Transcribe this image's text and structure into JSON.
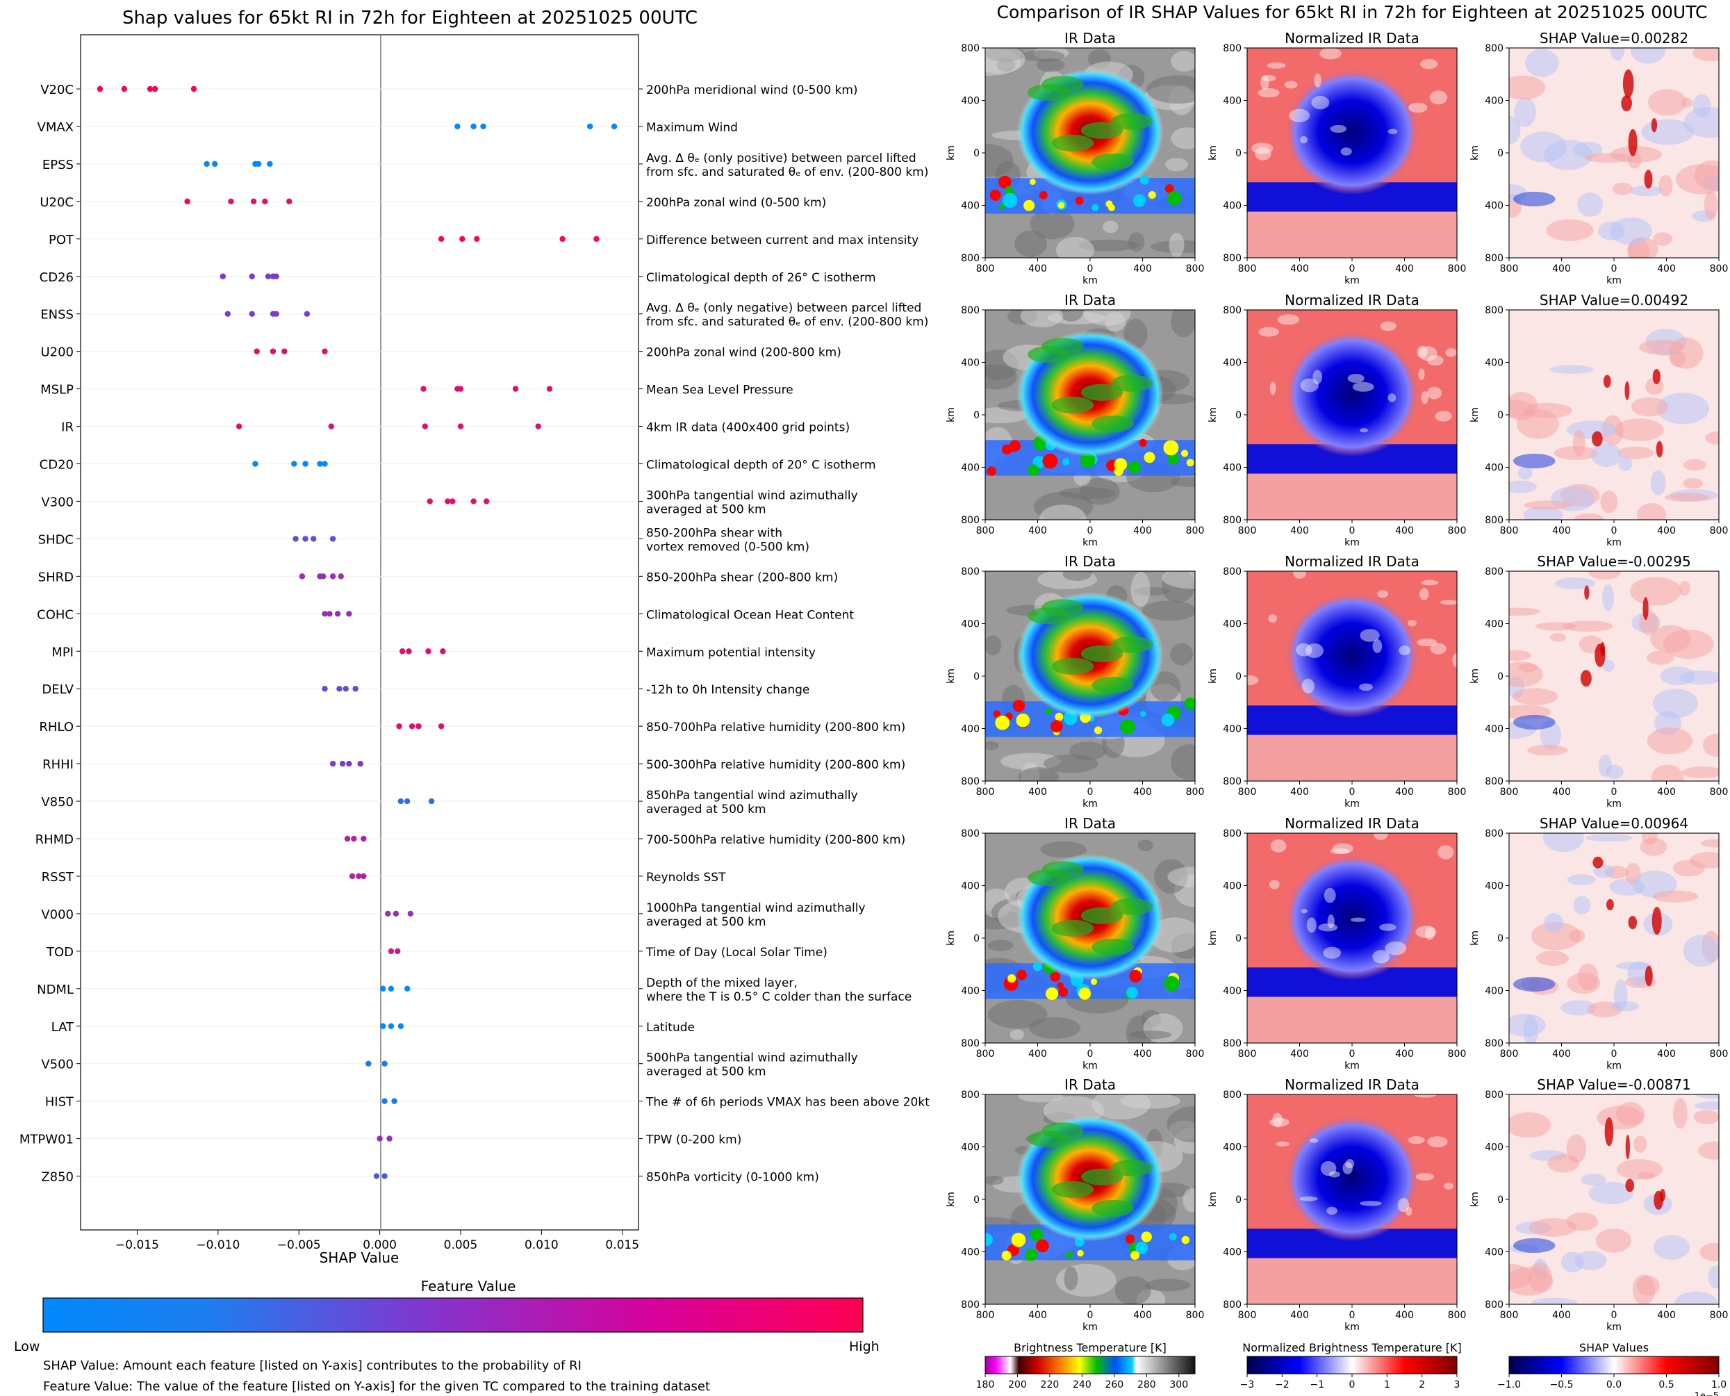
{
  "colors": {
    "low": "#008afb",
    "mid": "#7c3ad1",
    "high": "#ff0052",
    "axis": "#000000",
    "zero_line": "#777777",
    "grid": "#eeeeee"
  },
  "chart_data": [
    {
      "type": "scatter",
      "subtype": "shap-beeswarm",
      "title": "Shap values for 65kt RI in 72h for Eighteen at 20251025 00UTC",
      "xlabel": "SHAP Value",
      "xlim": [
        -0.0185,
        0.016
      ],
      "xticks": [
        -0.015,
        -0.01,
        -0.005,
        0.0,
        0.005,
        0.01,
        0.015
      ],
      "xtick_labels": [
        "−0.015",
        "−0.010",
        "−0.005",
        "0.000",
        "0.005",
        "0.010",
        "0.015"
      ],
      "grid": "horizontal-faint",
      "features": [
        {
          "name": "V20C",
          "desc": [
            "200hPa meridional wind (0-500 km)"
          ],
          "points": [
            [
              -0.0173,
              1
            ],
            [
              -0.0158,
              1
            ],
            [
              -0.0142,
              1
            ],
            [
              -0.0139,
              1
            ],
            [
              -0.0115,
              1
            ]
          ]
        },
        {
          "name": "VMAX",
          "desc": [
            "Maximum Wind"
          ],
          "points": [
            [
              0.0048,
              0
            ],
            [
              0.0058,
              0
            ],
            [
              0.0064,
              0
            ],
            [
              0.013,
              0
            ],
            [
              0.0145,
              0
            ]
          ]
        },
        {
          "name": "EPSS",
          "desc": [
            "Avg. Δ θₑ (only positive) between parcel lifted",
            "from sfc. and saturated θₑ of env. (200-800 km)"
          ],
          "points": [
            [
              -0.0107,
              0
            ],
            [
              -0.0102,
              0
            ],
            [
              -0.0077,
              0
            ],
            [
              -0.0075,
              0
            ],
            [
              -0.0068,
              0
            ]
          ]
        },
        {
          "name": "U20C",
          "desc": [
            "200hPa zonal wind (0-500 km)"
          ],
          "points": [
            [
              -0.0119,
              1
            ],
            [
              -0.0092,
              0.9
            ],
            [
              -0.0078,
              0.9
            ],
            [
              -0.0071,
              0.9
            ],
            [
              -0.0056,
              0.9
            ]
          ]
        },
        {
          "name": "POT",
          "desc": [
            "Difference between current and max intensity"
          ],
          "points": [
            [
              0.0038,
              1
            ],
            [
              0.0051,
              1
            ],
            [
              0.006,
              1
            ],
            [
              0.0113,
              1
            ],
            [
              0.0134,
              1
            ]
          ]
        },
        {
          "name": "CD26",
          "desc": [
            "Climatological depth of 26° C isotherm"
          ],
          "points": [
            [
              -0.0097,
              0.5
            ],
            [
              -0.0079,
              0.5
            ],
            [
              -0.0069,
              0.5
            ],
            [
              -0.0066,
              0.5
            ],
            [
              -0.0064,
              0.5
            ]
          ]
        },
        {
          "name": "ENSS",
          "desc": [
            "Avg. Δ θₑ (only negative) between parcel lifted",
            "from sfc. and saturated θₑ of env. (200-800 km)"
          ],
          "points": [
            [
              -0.0094,
              0.5
            ],
            [
              -0.0079,
              0.5
            ],
            [
              -0.0066,
              0.5
            ],
            [
              -0.0064,
              0.5
            ],
            [
              -0.0045,
              0.5
            ]
          ]
        },
        {
          "name": "U200",
          "desc": [
            "200hPa zonal wind (200-800 km)"
          ],
          "points": [
            [
              -0.0076,
              0.9
            ],
            [
              -0.0066,
              0.9
            ],
            [
              -0.0059,
              0.9
            ],
            [
              -0.0034,
              0.9
            ]
          ]
        },
        {
          "name": "MSLP",
          "desc": [
            "Mean Sea Level Pressure"
          ],
          "points": [
            [
              0.0027,
              0.9
            ],
            [
              0.0048,
              0.9
            ],
            [
              0.005,
              0.9
            ],
            [
              0.0084,
              0.9
            ],
            [
              0.0105,
              0.9
            ]
          ]
        },
        {
          "name": "IR",
          "desc": [
            "4km IR data (400x400 grid points)"
          ],
          "points": [
            [
              -0.0087,
              0.9
            ],
            [
              -0.003,
              0.9
            ],
            [
              0.0028,
              0.9
            ],
            [
              0.005,
              0.9
            ],
            [
              0.0098,
              0.9
            ]
          ]
        },
        {
          "name": "CD20",
          "desc": [
            "Climatological depth of 20° C isotherm"
          ],
          "points": [
            [
              -0.0077,
              0
            ],
            [
              -0.0053,
              0
            ],
            [
              -0.0046,
              0
            ],
            [
              -0.0037,
              0
            ],
            [
              -0.0034,
              0
            ]
          ]
        },
        {
          "name": "V300",
          "desc": [
            "300hPa tangential wind azimuthally",
            "averaged at 500 km"
          ],
          "points": [
            [
              0.0031,
              0.9
            ],
            [
              0.0042,
              0.9
            ],
            [
              0.0045,
              0.9
            ],
            [
              0.0058,
              0.9
            ],
            [
              0.0066,
              0.9
            ]
          ]
        },
        {
          "name": "SHDC",
          "desc": [
            "850-200hPa shear with",
            "vortex removed (0-500 km)"
          ],
          "points": [
            [
              -0.0052,
              0.4
            ],
            [
              -0.0046,
              0.4
            ],
            [
              -0.0041,
              0.4
            ],
            [
              -0.0029,
              0.4
            ]
          ]
        },
        {
          "name": "SHRD",
          "desc": [
            "850-200hPa shear (200-800 km)"
          ],
          "points": [
            [
              -0.0048,
              0.6
            ],
            [
              -0.0037,
              0.6
            ],
            [
              -0.0035,
              0.6
            ],
            [
              -0.0029,
              0.6
            ],
            [
              -0.0024,
              0.6
            ]
          ]
        },
        {
          "name": "COHC",
          "desc": [
            "Climatological Ocean Heat Content"
          ],
          "points": [
            [
              -0.0034,
              0.6
            ],
            [
              -0.0031,
              0.6
            ],
            [
              -0.0026,
              0.6
            ],
            [
              -0.0019,
              0.6
            ]
          ]
        },
        {
          "name": "MPI",
          "desc": [
            "Maximum potential intensity"
          ],
          "points": [
            [
              0.0014,
              0.9
            ],
            [
              0.0018,
              0.9
            ],
            [
              0.003,
              0.9
            ],
            [
              0.0039,
              0.9
            ]
          ]
        },
        {
          "name": "DELV",
          "desc": [
            "-12h to 0h Intensity change"
          ],
          "points": [
            [
              -0.0034,
              0.4
            ],
            [
              -0.0025,
              0.4
            ],
            [
              -0.0021,
              0.4
            ],
            [
              -0.0015,
              0.4
            ]
          ]
        },
        {
          "name": "RHLO",
          "desc": [
            "850-700hPa relative humidity (200-800 km)"
          ],
          "points": [
            [
              0.0012,
              0.9
            ],
            [
              0.002,
              0.9
            ],
            [
              0.0024,
              0.9
            ],
            [
              0.0038,
              0.9
            ]
          ]
        },
        {
          "name": "RHHI",
          "desc": [
            "500-300hPa relative humidity (200-800 km)"
          ],
          "points": [
            [
              -0.0029,
              0.5
            ],
            [
              -0.0023,
              0.5
            ],
            [
              -0.0019,
              0.5
            ],
            [
              -0.0012,
              0.5
            ]
          ]
        },
        {
          "name": "V850",
          "desc": [
            "850hPa tangential wind azimuthally",
            "averaged at 500 km"
          ],
          "points": [
            [
              0.0013,
              0.2
            ],
            [
              0.0017,
              0.2
            ],
            [
              0.0032,
              0.2
            ]
          ]
        },
        {
          "name": "RHMD",
          "desc": [
            "700-500hPa relative humidity (200-800 km)"
          ],
          "points": [
            [
              -0.002,
              0.7
            ],
            [
              -0.0016,
              0.7
            ],
            [
              -0.001,
              0.7
            ]
          ]
        },
        {
          "name": "RSST",
          "desc": [
            "Reynolds SST"
          ],
          "points": [
            [
              -0.0017,
              0.7
            ],
            [
              -0.0013,
              0.7
            ],
            [
              -0.001,
              0.7
            ]
          ]
        },
        {
          "name": "V000",
          "desc": [
            "1000hPa tangential wind azimuthally",
            "averaged at 500 km"
          ],
          "points": [
            [
              0.0005,
              0.6
            ],
            [
              0.001,
              0.6
            ],
            [
              0.0019,
              0.6
            ]
          ]
        },
        {
          "name": "TOD",
          "desc": [
            "Time of Day (Local Solar Time)"
          ],
          "points": [
            [
              0.0007,
              0.8
            ],
            [
              0.0011,
              0.8
            ]
          ]
        },
        {
          "name": "NDML",
          "desc": [
            "Depth of the mixed layer,",
            "where the T is 0.5° C colder than the surface"
          ],
          "points": [
            [
              0.0002,
              0
            ],
            [
              0.0007,
              0
            ],
            [
              0.0017,
              0
            ]
          ]
        },
        {
          "name": "LAT",
          "desc": [
            "Latitude"
          ],
          "points": [
            [
              0.0002,
              0
            ],
            [
              0.0007,
              0
            ],
            [
              0.0013,
              0
            ]
          ]
        },
        {
          "name": "V500",
          "desc": [
            "500hPa tangential wind azimuthally",
            "averaged at 500 km"
          ],
          "points": [
            [
              -0.0007,
              0.1
            ],
            [
              0.0003,
              0.1
            ]
          ]
        },
        {
          "name": "HIST",
          "desc": [
            "The # of 6h periods VMAX has been above 20kt"
          ],
          "points": [
            [
              0.0003,
              0.1
            ],
            [
              0.0009,
              0.1
            ]
          ]
        },
        {
          "name": "MTPW01",
          "desc": [
            "TPW (0-200 km)"
          ],
          "points": [
            [
              0.0,
              0.6
            ],
            [
              0.0006,
              0.6
            ]
          ]
        },
        {
          "name": "Z850",
          "desc": [
            "850hPa vorticity (0-1000 km)"
          ],
          "points": [
            [
              -0.0002,
              0.3
            ],
            [
              0.0003,
              0.3
            ]
          ]
        }
      ]
    },
    {
      "type": "heatmap",
      "title": "Comparison of IR SHAP Values for 65kt RI in 72h for Eighteen at 20251025 00UTC",
      "columns": [
        "IR Data",
        "Normalized IR Data",
        "SHAP Value"
      ],
      "shap_values": [
        "0.00282",
        "0.00492",
        "-0.00295",
        "0.00964",
        "-0.00871"
      ],
      "xlabel": "km",
      "ylabel": "km",
      "xlim": [
        -800,
        800
      ],
      "ylim": [
        800,
        -800
      ],
      "ticks": [
        "800",
        "400",
        "0",
        "400",
        "800"
      ],
      "colorbars": [
        {
          "label": "Brightness Temperature [K]",
          "ticks": [
            "180",
            "200",
            "220",
            "240",
            "260",
            "280",
            "300"
          ],
          "range": [
            180,
            310
          ]
        },
        {
          "label": "Normalized Brightness Temperature [K]",
          "ticks": [
            "−3",
            "−2",
            "−1",
            "0",
            "1",
            "2",
            "3"
          ],
          "range": [
            -3,
            3
          ]
        },
        {
          "label": "SHAP Values",
          "ticks": [
            "−1.0",
            "−0.5",
            "0.0",
            "0.5",
            "1.0"
          ],
          "range": [
            -1,
            1
          ],
          "exponent": "1e−5"
        }
      ]
    }
  ],
  "legend": {
    "title": "Feature Value",
    "low": "Low",
    "high": "High"
  },
  "notes": {
    "line1": "SHAP Value: Amount each feature [listed on Y-axis] contributes to the probability of RI",
    "line2": "Feature Value: The value of the feature [listed on Y-axis] for the given TC compared to the training dataset"
  }
}
